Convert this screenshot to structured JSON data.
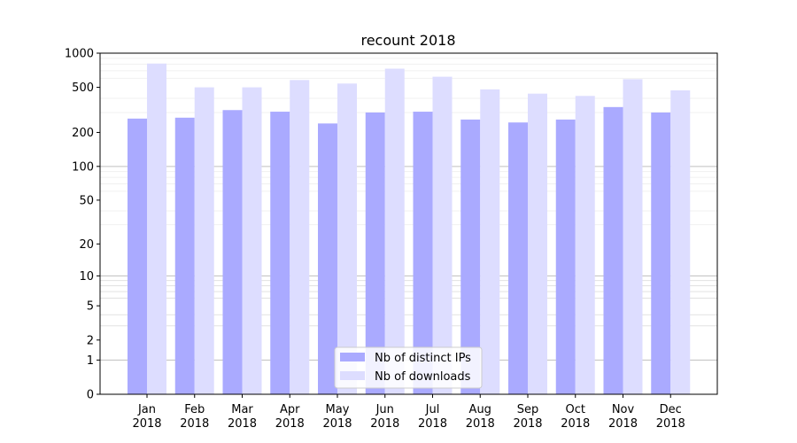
{
  "chart_data": {
    "type": "bar",
    "title": "recount 2018",
    "xlabel": "",
    "ylabel": "",
    "yscale": "log1p",
    "ylim": [
      0,
      1000
    ],
    "yticks": [
      0,
      1,
      2,
      5,
      10,
      20,
      50,
      100,
      200,
      500,
      1000
    ],
    "grid": "horizontal, major and minor",
    "legend_position": "bottom-center",
    "categories": [
      [
        "Jan",
        "2018"
      ],
      [
        "Feb",
        "2018"
      ],
      [
        "Mar",
        "2018"
      ],
      [
        "Apr",
        "2018"
      ],
      [
        "May",
        "2018"
      ],
      [
        "Jun",
        "2018"
      ],
      [
        "Jul",
        "2018"
      ],
      [
        "Aug",
        "2018"
      ],
      [
        "Sep",
        "2018"
      ],
      [
        "Oct",
        "2018"
      ],
      [
        "Nov",
        "2018"
      ],
      [
        "Dec",
        "2018"
      ]
    ],
    "series": [
      {
        "name": "Nb of distinct IPs",
        "color": "#aaaaff",
        "values": [
          265,
          270,
          315,
          305,
          240,
          300,
          305,
          260,
          245,
          260,
          335,
          300
        ]
      },
      {
        "name": "Nb of downloads",
        "color": "#ddddff",
        "values": [
          810,
          500,
          500,
          580,
          540,
          730,
          620,
          480,
          440,
          420,
          590,
          470
        ]
      }
    ]
  }
}
